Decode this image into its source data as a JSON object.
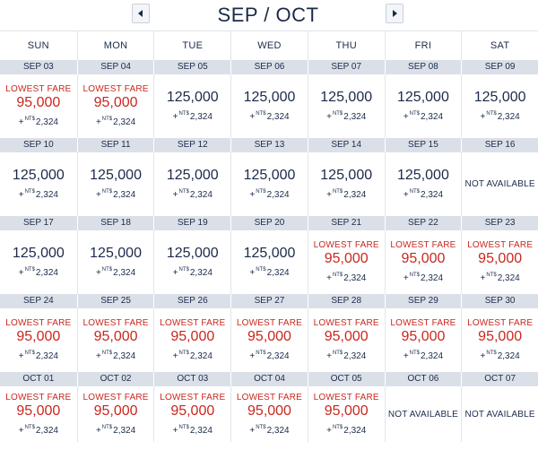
{
  "header": {
    "title": "SEP / OCT",
    "prev_label": "previous month",
    "next_label": "next month"
  },
  "weekdays": [
    "SUN",
    "MON",
    "TUE",
    "WED",
    "THU",
    "FRI",
    "SAT"
  ],
  "labels": {
    "lowest_fare": "LOWEST FARE",
    "not_available": "NOT AVAILABLE",
    "tax_prefix": "+",
    "currency": "NT$",
    "tax_amount": "2,324"
  },
  "colors": {
    "lowest_fare": "#c8281e",
    "text": "#1b2a4a",
    "date_bar": "#dbe0e8"
  },
  "weeks": [
    {
      "days": [
        {
          "date": "SEP 03",
          "miles": "95,000",
          "lowest": true,
          "available": true
        },
        {
          "date": "SEP 04",
          "miles": "95,000",
          "lowest": true,
          "available": true
        },
        {
          "date": "SEP 05",
          "miles": "125,000",
          "lowest": false,
          "available": true
        },
        {
          "date": "SEP 06",
          "miles": "125,000",
          "lowest": false,
          "available": true
        },
        {
          "date": "SEP 07",
          "miles": "125,000",
          "lowest": false,
          "available": true
        },
        {
          "date": "SEP 08",
          "miles": "125,000",
          "lowest": false,
          "available": true
        },
        {
          "date": "SEP 09",
          "miles": "125,000",
          "lowest": false,
          "available": true
        }
      ]
    },
    {
      "days": [
        {
          "date": "SEP 10",
          "miles": "125,000",
          "lowest": false,
          "available": true
        },
        {
          "date": "SEP 11",
          "miles": "125,000",
          "lowest": false,
          "available": true
        },
        {
          "date": "SEP 12",
          "miles": "125,000",
          "lowest": false,
          "available": true
        },
        {
          "date": "SEP 13",
          "miles": "125,000",
          "lowest": false,
          "available": true
        },
        {
          "date": "SEP 14",
          "miles": "125,000",
          "lowest": false,
          "available": true
        },
        {
          "date": "SEP 15",
          "miles": "125,000",
          "lowest": false,
          "available": true
        },
        {
          "date": "SEP 16",
          "miles": "",
          "lowest": false,
          "available": false
        }
      ]
    },
    {
      "days": [
        {
          "date": "SEP 17",
          "miles": "125,000",
          "lowest": false,
          "available": true
        },
        {
          "date": "SEP 18",
          "miles": "125,000",
          "lowest": false,
          "available": true
        },
        {
          "date": "SEP 19",
          "miles": "125,000",
          "lowest": false,
          "available": true
        },
        {
          "date": "SEP 20",
          "miles": "125,000",
          "lowest": false,
          "available": true
        },
        {
          "date": "SEP 21",
          "miles": "95,000",
          "lowest": true,
          "available": true
        },
        {
          "date": "SEP 22",
          "miles": "95,000",
          "lowest": true,
          "available": true
        },
        {
          "date": "SEP 23",
          "miles": "95,000",
          "lowest": true,
          "available": true
        }
      ]
    },
    {
      "days": [
        {
          "date": "SEP 24",
          "miles": "95,000",
          "lowest": true,
          "available": true
        },
        {
          "date": "SEP 25",
          "miles": "95,000",
          "lowest": true,
          "available": true
        },
        {
          "date": "SEP 26",
          "miles": "95,000",
          "lowest": true,
          "available": true
        },
        {
          "date": "SEP 27",
          "miles": "95,000",
          "lowest": true,
          "available": true
        },
        {
          "date": "SEP 28",
          "miles": "95,000",
          "lowest": true,
          "available": true
        },
        {
          "date": "SEP 29",
          "miles": "95,000",
          "lowest": true,
          "available": true
        },
        {
          "date": "SEP 30",
          "miles": "95,000",
          "lowest": true,
          "available": true
        }
      ]
    },
    {
      "days": [
        {
          "date": "OCT 01",
          "miles": "95,000",
          "lowest": true,
          "available": true
        },
        {
          "date": "OCT 02",
          "miles": "95,000",
          "lowest": true,
          "available": true
        },
        {
          "date": "OCT 03",
          "miles": "95,000",
          "lowest": true,
          "available": true
        },
        {
          "date": "OCT 04",
          "miles": "95,000",
          "lowest": true,
          "available": true
        },
        {
          "date": "OCT 05",
          "miles": "95,000",
          "lowest": true,
          "available": true
        },
        {
          "date": "OCT 06",
          "miles": "",
          "lowest": false,
          "available": false
        },
        {
          "date": "OCT 07",
          "miles": "",
          "lowest": false,
          "available": false
        }
      ]
    }
  ]
}
